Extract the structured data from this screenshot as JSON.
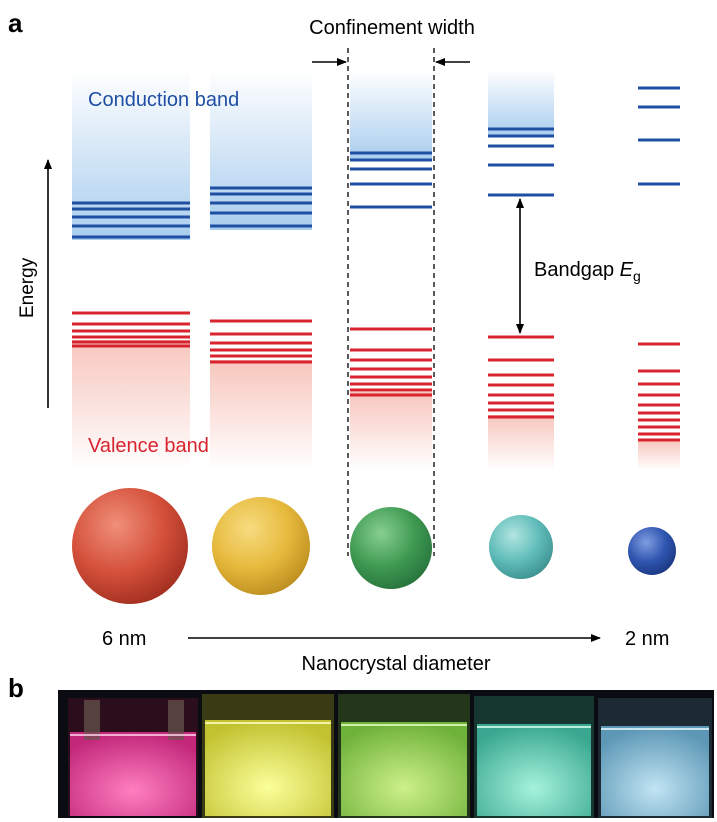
{
  "panel_a": {
    "label": "a",
    "confinement_label": "Confinement width",
    "conduction_label": "Conduction band",
    "valence_label": "Valence band",
    "energy_label": "Energy",
    "bandgap_label": "Bandgap ",
    "bandgap_symbol": "E",
    "bandgap_subscript": "g",
    "size_large": "6 nm",
    "size_small": "2 nm",
    "axis_label": "Nanocrystal diameter",
    "colors": {
      "conduction": "#1f4fa3",
      "valence": "#d9242f",
      "conduction_fill": "#a9cdee",
      "valence_fill": "#f7c6bd"
    },
    "nanocrystals": [
      {
        "name": "red",
        "color": "#d4503a"
      },
      {
        "name": "yellow",
        "color": "#e6b93c"
      },
      {
        "name": "green",
        "color": "#3f9a52"
      },
      {
        "name": "teal",
        "color": "#5fbcb9"
      },
      {
        "name": "blue",
        "color": "#2f55b0"
      }
    ]
  },
  "panel_b": {
    "label": "b",
    "vials": [
      {
        "name": "magenta",
        "color": "#f04fa0"
      },
      {
        "name": "yellow",
        "color": "#e9f05a"
      },
      {
        "name": "green",
        "color": "#a6e058"
      },
      {
        "name": "cyan",
        "color": "#6fe2c2"
      },
      {
        "name": "light-blue",
        "color": "#8cc7e3"
      }
    ]
  }
}
